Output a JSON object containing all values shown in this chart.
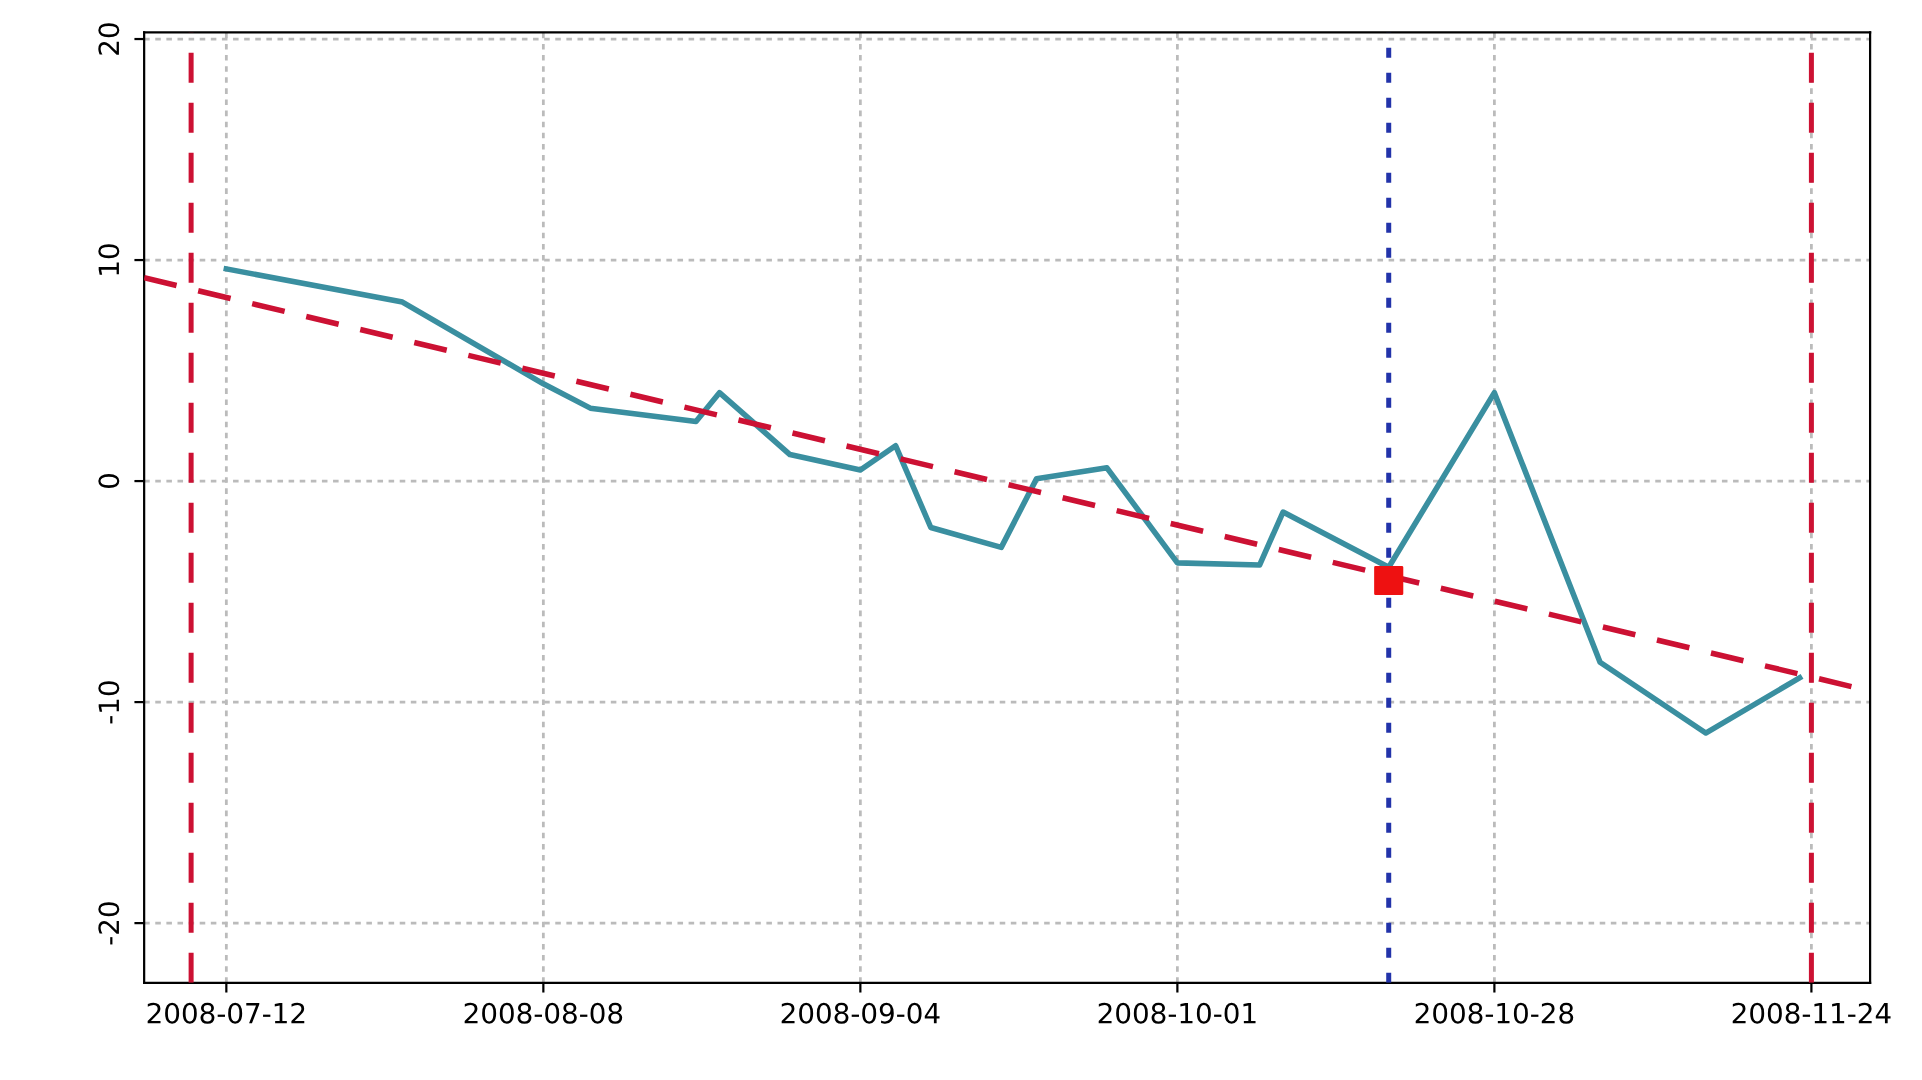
{
  "chart_data": {
    "type": "line",
    "series": [
      {
        "color": "#3a8fa0",
        "line_style": "solid",
        "marker": "none",
        "x": [
          "2008-07-12",
          "2008-07-27",
          "2008-08-08",
          "2008-08-12",
          "2008-08-21",
          "2008-08-23",
          "2008-08-29",
          "2008-09-04",
          "2008-09-07",
          "2008-09-10",
          "2008-09-16",
          "2008-09-19",
          "2008-09-25",
          "2008-10-01",
          "2008-10-08",
          "2008-10-10",
          "2008-10-19",
          "2008-10-28",
          "2008-11-06",
          "2008-11-15",
          "2008-11-23"
        ],
        "values": [
          9.6,
          8.1,
          4.4,
          3.3,
          2.7,
          4.0,
          1.2,
          0.5,
          1.6,
          -2.1,
          -3.0,
          0.1,
          0.6,
          -3.7,
          -3.8,
          -1.4,
          -3.9,
          4.0,
          -8.2,
          -11.4,
          -8.9
        ]
      },
      {
        "color": "#cc1133",
        "line_style": "dashed",
        "marker": "none",
        "x": [
          "2008-07-05",
          "2008-11-29"
        ],
        "values": [
          9.2,
          -9.5
        ]
      },
      {
        "type": "scatter",
        "color": "#ee1111",
        "marker": "square",
        "x": [
          "2008-10-19"
        ],
        "values": [
          -4.5
        ]
      }
    ],
    "ref_lines": [
      {
        "axis": "x",
        "value": "2008-07-09",
        "color": "#cc1133",
        "line_style": "dashed"
      },
      {
        "axis": "x",
        "value": "2008-11-24",
        "color": "#cc1133",
        "line_style": "dashed"
      },
      {
        "axis": "x",
        "value": "2008-10-19",
        "color": "#2233aa",
        "line_style": "dotted"
      }
    ],
    "xlim": [
      "2008-07-05",
      "2008-11-29"
    ],
    "xticks": [
      "2008-07-12",
      "2008-08-08",
      "2008-09-04",
      "2008-10-01",
      "2008-10-28",
      "2008-11-24"
    ],
    "ylim": [
      -22.7,
      20.3
    ],
    "yticks": [
      -20,
      -10,
      0,
      10,
      20
    ],
    "grid": true
  }
}
